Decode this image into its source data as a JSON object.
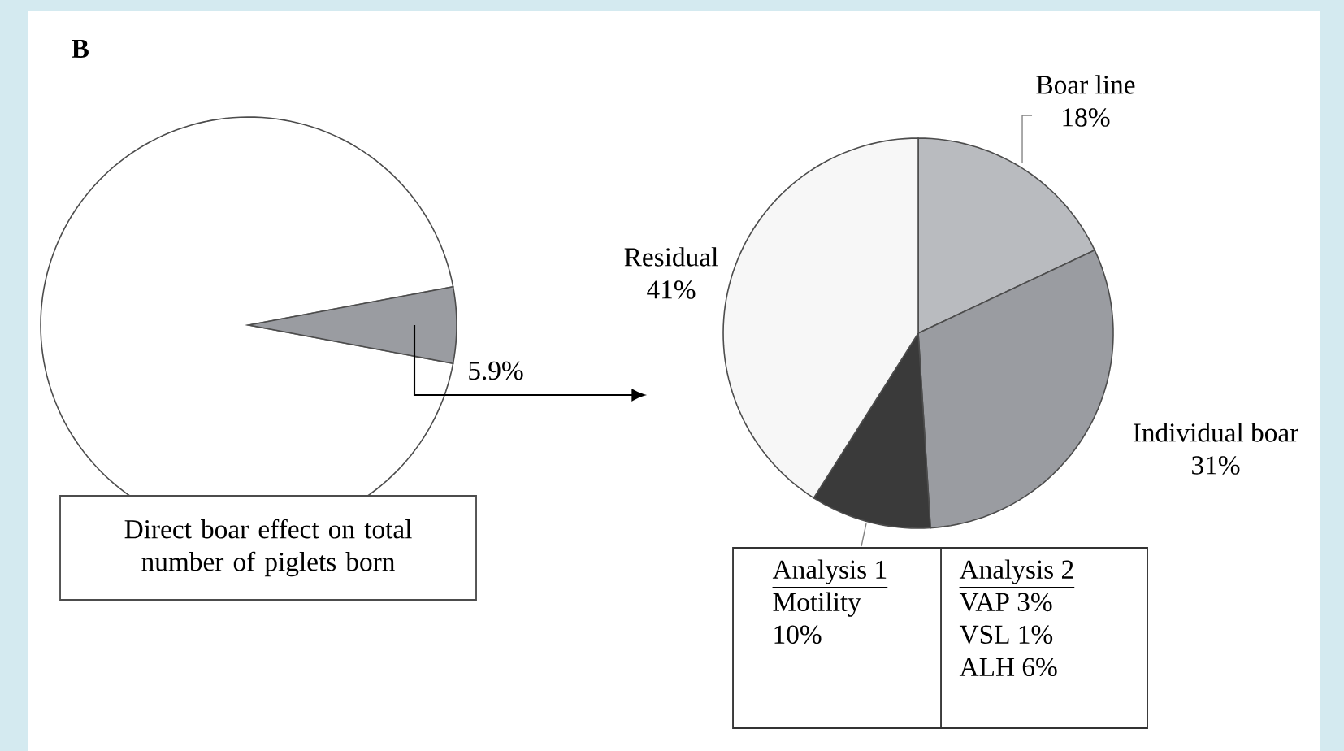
{
  "chart_data": [
    {
      "type": "pie",
      "categories": [
        null,
        null
      ],
      "values": [
        94.1,
        5.9
      ],
      "colors": [
        "#ffffff",
        "#9a9ca1"
      ],
      "value_labels": [
        null,
        "5.9%"
      ],
      "annotations": [
        "B",
        "Direct boar effect on total number of piglets born"
      ]
    },
    {
      "type": "pie",
      "categories": [
        "Boar line",
        "Individual boar",
        null,
        "Residual"
      ],
      "values": [
        18,
        31,
        10,
        41
      ],
      "colors": [
        "#b9bbbf",
        "#9a9ca1",
        "#3a3a3a",
        "#f7f7f7"
      ],
      "value_labels": [
        "18%",
        "31%",
        null,
        "41%"
      ],
      "annotations": [
        "Analysis 1",
        "Motility",
        "10%",
        "Analysis 2",
        "VAP 3%",
        "VSL 1%",
        "ALH 6%"
      ]
    }
  ]
}
